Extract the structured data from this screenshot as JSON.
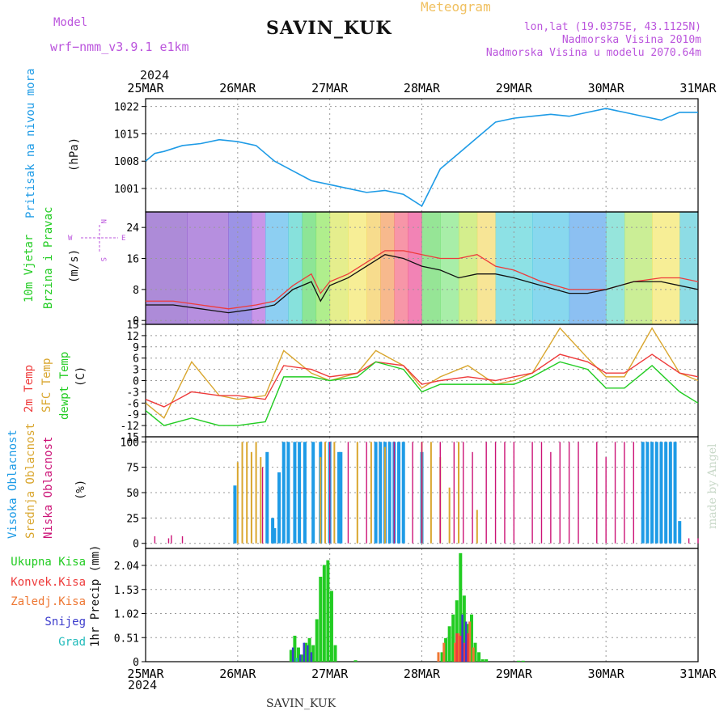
{
  "header": {
    "model_label": "Model",
    "model_name": "wrf−nmm_v3.9.1 e1km",
    "station": "SAVIN_KUK",
    "product": "Meteogram",
    "lonlat": "lon,lat (19.0375E, 43.1125N)",
    "elevation": "Nadmorska Visina 2010m",
    "model_elevation": "Nadmorska Visina u modelu 2070.64m",
    "year_top": "2024",
    "year_bottom": "2024",
    "footer_station": "SAVIN_KUK",
    "watermark": "made by Angel"
  },
  "colors": {
    "pressure": "#1e9be6",
    "temp2m": "#ee3b3b",
    "sfc": "#d9a62e",
    "dew": "#22cc22",
    "high_cloud": "#1e9be6",
    "mid_cloud": "#d9a62e",
    "low_cloud": "#cc1477",
    "total_precip": "#22cc22",
    "conv_precip": "#ee3b3b",
    "frz_precip": "#ee7733",
    "snow": "#3b3bcc",
    "grad": "#22bbbb",
    "violet": "#bb55dd",
    "orange_title": "#f0c060"
  },
  "chart_data": [
    {
      "id": "pressure",
      "type": "line",
      "title_lines": [
        "Pritisak na nivou mora",
        "(hPa)"
      ],
      "x_ticks": [
        "25MAR",
        "26MAR",
        "27MAR",
        "28MAR",
        "29MAR",
        "30MAR",
        "31MAR"
      ],
      "ylim": [
        995,
        1024
      ],
      "y_ticks": [
        "1022",
        "1015",
        "1008",
        "1001"
      ],
      "x_days": [
        0.0,
        0.1,
        0.2,
        0.4,
        0.6,
        0.8,
        1.0,
        1.2,
        1.4,
        1.6,
        1.8,
        2.0,
        2.2,
        2.4,
        2.6,
        2.8,
        3.0,
        3.2,
        3.4,
        3.6,
        3.8,
        4.0,
        4.2,
        4.4,
        4.6,
        4.8,
        5.0,
        5.2,
        5.4,
        5.6,
        5.8,
        6.0
      ],
      "values": [
        1008,
        1010,
        1010.5,
        1012,
        1012.5,
        1013.5,
        1013,
        1012,
        1008,
        1005.5,
        1003,
        1002,
        1001,
        1000,
        1000.5,
        999.5,
        996.5,
        1006,
        1010,
        1014,
        1018,
        1019,
        1019.5,
        1020,
        1019.5,
        1020.5,
        1021.5,
        1020.5,
        1019.5,
        1018.5,
        1020.5,
        1020.5
      ]
    },
    {
      "id": "wind",
      "type": "line",
      "title_lines": [
        "10m Vjetar",
        "Brzina i Pravac",
        "(m/s)"
      ],
      "compass": [
        "W",
        "N",
        "E",
        "S"
      ],
      "x_ticks": [
        "25MAR",
        "26MAR",
        "27MAR",
        "28MAR",
        "29MAR",
        "30MAR",
        "31MAR"
      ],
      "ylim": [
        -1,
        28
      ],
      "y_ticks": [
        "24",
        "16",
        "8",
        "0"
      ],
      "x_days": [
        0.0,
        0.3,
        0.6,
        0.9,
        1.2,
        1.4,
        1.6,
        1.8,
        1.9,
        2.0,
        2.2,
        2.4,
        2.6,
        2.8,
        3.0,
        3.2,
        3.4,
        3.6,
        3.8,
        4.0,
        4.3,
        4.6,
        4.8,
        5.0,
        5.3,
        5.6,
        5.8,
        6.0
      ],
      "series": [
        {
          "key": "speed",
          "values": [
            4,
            4,
            3,
            2,
            3,
            4,
            8,
            10,
            5,
            9,
            11,
            14,
            17,
            16,
            14,
            13,
            11,
            12,
            12,
            11,
            9,
            7,
            7,
            8,
            10,
            10,
            9,
            8
          ]
        },
        {
          "key": "gust",
          "values": [
            5,
            5,
            4,
            3,
            4,
            5,
            9,
            12,
            7,
            10,
            12,
            15,
            18,
            18,
            17,
            16,
            16,
            17,
            14,
            13,
            10,
            8,
            8,
            8,
            10,
            11,
            11,
            10
          ]
        }
      ]
    },
    {
      "id": "temperature",
      "type": "line",
      "title_lines": [
        "2m Temp",
        "SFC Temp",
        "dewpt Temp",
        "(C)"
      ],
      "x_ticks": [
        "25MAR",
        "26MAR",
        "27MAR",
        "28MAR",
        "29MAR",
        "30MAR",
        "31MAR"
      ],
      "ylim": [
        -15,
        15
      ],
      "y_ticks": [
        "15",
        "12",
        "9",
        "6",
        "3",
        "0",
        "-3",
        "-6",
        "-9",
        "-12",
        "-15"
      ],
      "x_days": [
        0.0,
        0.2,
        0.5,
        0.8,
        1.0,
        1.3,
        1.5,
        1.8,
        2.0,
        2.3,
        2.5,
        2.8,
        3.0,
        3.2,
        3.5,
        3.8,
        4.0,
        4.2,
        4.5,
        4.8,
        5.0,
        5.2,
        5.5,
        5.8,
        6.0
      ],
      "series": [
        {
          "key": "t2m",
          "values": [
            -5,
            -7,
            -3,
            -4,
            -4,
            -5,
            4,
            3,
            1,
            2,
            5,
            4,
            -1,
            0,
            1,
            0,
            1,
            2,
            7,
            5,
            2,
            2,
            7,
            2,
            1
          ]
        },
        {
          "key": "sfc",
          "values": [
            -6,
            -10,
            5,
            -4,
            -5,
            -4,
            8,
            2,
            0,
            2,
            8,
            4,
            -2,
            1,
            4,
            -1,
            0,
            2,
            14,
            6,
            1,
            1,
            14,
            2,
            0
          ]
        },
        {
          "key": "dew",
          "values": [
            -8,
            -12,
            -10,
            -12,
            -12,
            -11,
            1,
            1,
            0,
            1,
            5,
            3,
            -3,
            -1,
            -1,
            -1,
            -1,
            1,
            5,
            3,
            -2,
            -2,
            4,
            -3,
            -6
          ]
        }
      ]
    },
    {
      "id": "clouds",
      "type": "bar",
      "title_lines": [
        "Visoka Oblacnost",
        "Srednja Oblacnost",
        "Niska Oblacnost",
        "(%)"
      ],
      "x_ticks": [
        "25MAR",
        "26MAR",
        "27MAR",
        "28MAR",
        "29MAR",
        "30MAR",
        "31MAR"
      ],
      "ylim": [
        -5,
        105
      ],
      "y_ticks": [
        "100",
        "75",
        "50",
        "25",
        "0"
      ],
      "series": [
        {
          "key": "high",
          "x_days": [
            0.97,
            1.32,
            1.38,
            1.4,
            1.45,
            1.5,
            1.55,
            1.62,
            1.67,
            1.73,
            1.82,
            1.9,
            2.0,
            2.1,
            2.12,
            2.5,
            2.55,
            2.6,
            2.65,
            2.7,
            2.75,
            2.8,
            3.0,
            5.4,
            5.45,
            5.5,
            5.55,
            5.6,
            5.65,
            5.7,
            5.75,
            5.8
          ],
          "values": [
            57,
            90,
            25,
            15,
            70,
            100,
            100,
            100,
            100,
            100,
            100,
            100,
            100,
            90,
            90,
            100,
            100,
            100,
            100,
            100,
            100,
            100,
            90,
            100,
            100,
            100,
            100,
            100,
            100,
            100,
            100,
            22
          ]
        },
        {
          "key": "mid",
          "x_days": [
            1.0,
            1.05,
            1.1,
            1.15,
            1.2,
            1.25,
            1.9,
            1.95,
            2.05,
            2.3,
            2.45,
            2.6,
            3.0,
            3.1,
            3.2,
            3.3,
            3.4,
            3.6
          ],
          "values": [
            80,
            100,
            100,
            90,
            100,
            85,
            85,
            100,
            100,
            100,
            100,
            95,
            100,
            100,
            85,
            55,
            100,
            33
          ]
        },
        {
          "key": "low",
          "x_days": [
            0.1,
            0.25,
            0.28,
            0.4,
            1.27,
            2.0,
            2.2,
            2.4,
            2.7,
            2.9,
            3.0,
            3.2,
            3.35,
            3.45,
            3.55,
            3.7,
            3.8,
            3.9,
            4.0,
            4.2,
            4.3,
            4.4,
            4.5,
            4.6,
            4.7,
            4.9,
            5.0,
            5.1,
            5.2,
            5.3,
            5.9,
            6.0
          ],
          "values": [
            7,
            5,
            8,
            7,
            75,
            100,
            100,
            100,
            100,
            100,
            100,
            100,
            100,
            100,
            90,
            100,
            100,
            100,
            100,
            100,
            100,
            90,
            100,
            100,
            100,
            100,
            85,
            100,
            100,
            100,
            5,
            5
          ]
        }
      ]
    },
    {
      "id": "precip",
      "type": "bar",
      "title_lines": [
        "1hr Precip (mm)"
      ],
      "legend": [
        "Ukupna Kisa",
        "Konvek.Kisa",
        "Zaledj.Kisa",
        "Snijeg",
        "Grad"
      ],
      "x_ticks": [
        "25MAR",
        "26MAR",
        "27MAR",
        "28MAR",
        "29MAR",
        "30MAR",
        "31MAR"
      ],
      "ylim": [
        0,
        2.4
      ],
      "y_ticks": [
        "2.04",
        "1.53",
        "1.02",
        "0.51",
        "0"
      ],
      "series": [
        {
          "key": "total",
          "x_days": [
            1.58,
            1.62,
            1.66,
            1.7,
            1.74,
            1.78,
            1.82,
            1.86,
            1.9,
            1.94,
            1.98,
            2.02,
            2.06,
            2.28,
            3.22,
            3.26,
            3.3,
            3.34,
            3.38,
            3.42,
            3.46,
            3.5,
            3.54,
            3.58,
            3.62,
            3.66,
            3.7,
            4.05,
            4.1
          ],
          "values": [
            0.25,
            0.55,
            0.3,
            0.15,
            0.4,
            0.5,
            0.35,
            0.9,
            1.8,
            2.05,
            2.15,
            1.5,
            0.35,
            0.03,
            0.2,
            0.5,
            0.75,
            1.0,
            1.3,
            2.3,
            1.4,
            0.8,
            1.0,
            0.4,
            0.2,
            0.05,
            0.05,
            0.02,
            0.02
          ]
        },
        {
          "key": "convective",
          "x_days": [
            3.38,
            3.42,
            3.46,
            3.5
          ],
          "values": [
            0.6,
            0.55,
            0.4,
            0.6
          ]
        },
        {
          "key": "frozen",
          "x_days": [
            3.18,
            3.24,
            3.36,
            3.4,
            3.52,
            3.56
          ],
          "values": [
            0.2,
            0.4,
            0.4,
            0.6,
            0.85,
            0.3
          ]
        },
        {
          "key": "snow",
          "x_days": [
            1.6,
            1.68,
            1.72,
            1.76,
            1.8,
            3.44,
            3.48
          ],
          "values": [
            0.3,
            0.15,
            0.4,
            0.35,
            0.2,
            1.0,
            0.85
          ]
        },
        {
          "key": "grad",
          "x_days": [
            1.64
          ],
          "values": [
            0.08
          ]
        }
      ]
    }
  ]
}
